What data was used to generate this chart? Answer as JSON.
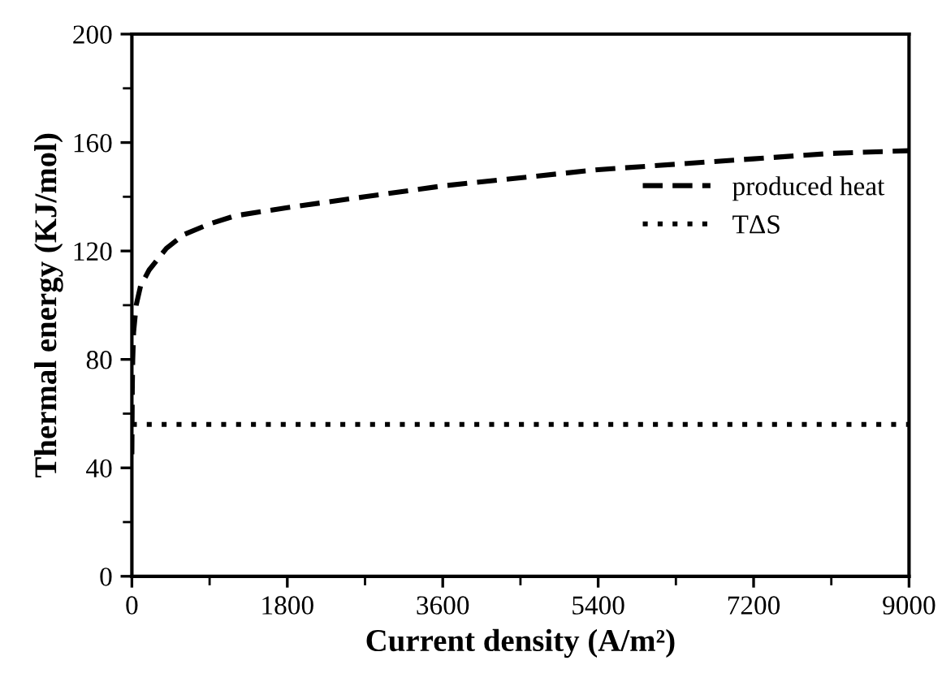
{
  "chart_data": {
    "type": "line",
    "xlabel": "Current density (A/m²)",
    "ylabel": "Thermal energy (KJ/mol)",
    "xlim": [
      0,
      9000
    ],
    "xticks": [
      0,
      1800,
      3600,
      5400,
      7200,
      9000
    ],
    "ylim": [
      0,
      200
    ],
    "yticks": [
      0,
      40,
      80,
      120,
      160,
      200
    ],
    "grid": false,
    "legend": "right",
    "marker": "none",
    "series": [
      {
        "name": "produced heat",
        "color": "#000000",
        "line_style": "dashed",
        "x": [
          0,
          5,
          10,
          20,
          50,
          100,
          200,
          400,
          600,
          900,
          1200,
          1800,
          2700,
          3600,
          4500,
          5400,
          6300,
          7200,
          8100,
          9000
        ],
        "values": [
          45,
          70,
          80,
          90,
          100,
          107,
          113,
          121,
          126,
          130,
          133,
          136,
          140,
          144,
          147,
          150,
          152,
          154,
          156,
          157
        ]
      },
      {
        "name": "TΔS",
        "color": "#000000",
        "line_style": "dotted",
        "x": [
          0,
          9000
        ],
        "values": [
          56,
          56
        ]
      }
    ]
  }
}
